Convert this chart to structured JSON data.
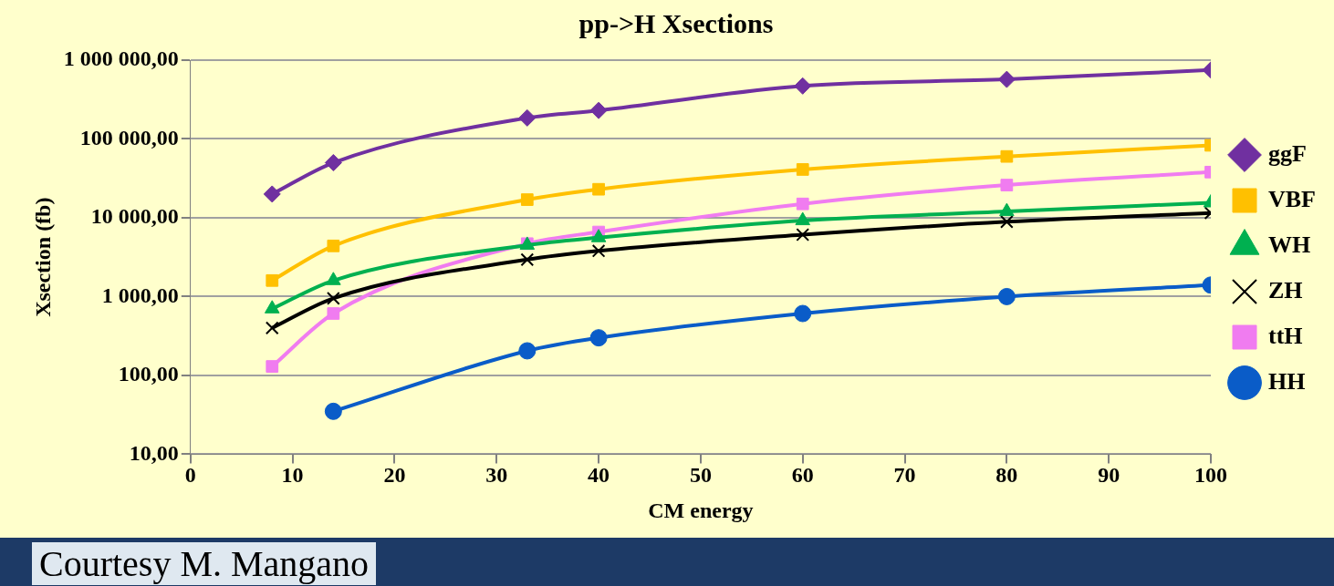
{
  "chart_data": {
    "type": "line",
    "title": "pp->H Xsections",
    "xlabel": "CM energy",
    "ylabel": "Xsection (fb)",
    "x": [
      8,
      14,
      33,
      40,
      60,
      80,
      100
    ],
    "series": [
      {
        "name": "ggF",
        "color": "#7030a0",
        "marker": "diamond",
        "values": [
          20000,
          50000,
          185000,
          230000,
          470000,
          570000,
          750000
        ]
      },
      {
        "name": "VBF",
        "color": "#ffc000",
        "marker": "square",
        "values": [
          1600,
          4400,
          17000,
          23000,
          41000,
          60000,
          83000
        ]
      },
      {
        "name": "WH",
        "color": "#00b050",
        "marker": "triangle",
        "values": [
          700,
          1600,
          4500,
          5600,
          9200,
          12000,
          15500
        ]
      },
      {
        "name": "ZH",
        "color": "#000000",
        "marker": "cross",
        "values": [
          400,
          950,
          2950,
          3800,
          6100,
          8900,
          11500
        ]
      },
      {
        "name": "ttH",
        "color": "#f07cf0",
        "marker": "square",
        "values": [
          130,
          610,
          4700,
          6600,
          15000,
          26000,
          38000
        ]
      },
      {
        "name": "HH",
        "color": "#0a5cc8",
        "marker": "circle",
        "values": [
          null,
          35,
          205,
          300,
          610,
          1000,
          1400
        ]
      }
    ],
    "log": "y",
    "xlim": [
      0,
      100
    ],
    "xticks": [
      0,
      10,
      20,
      30,
      40,
      50,
      60,
      70,
      80,
      90,
      100
    ],
    "ylim": [
      10,
      1000000
    ],
    "yticks": [
      {
        "value": 10,
        "label": "10,00"
      },
      {
        "value": 100,
        "label": "100,00"
      },
      {
        "value": 1000,
        "label": "1 000,00"
      },
      {
        "value": 10000,
        "label": "10 000,00"
      },
      {
        "value": 100000,
        "label": "100 000,00"
      },
      {
        "value": 1000000,
        "label": "1 000 000,00"
      }
    ],
    "grid": "y",
    "legend": "right",
    "line_style": "solid",
    "annotations": [
      "Courtesy M. Mangano"
    ]
  }
}
